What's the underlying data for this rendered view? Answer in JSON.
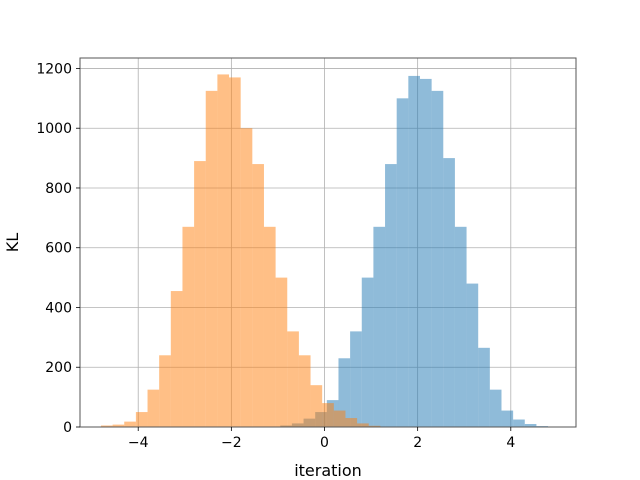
{
  "chart_data": {
    "type": "bar",
    "xlabel": "iteration",
    "ylabel": "KL",
    "xlim": [
      -5.25,
      5.4
    ],
    "ylim": [
      0,
      1235
    ],
    "grid": true,
    "x_ticks": [
      -4,
      -2,
      0,
      2,
      4
    ],
    "x_tick_labels": [
      "−4",
      "−2",
      "0",
      "2",
      "4"
    ],
    "y_ticks": [
      0,
      200,
      400,
      600,
      800,
      1000,
      1200
    ],
    "y_tick_labels": [
      "0",
      "200",
      "400",
      "600",
      "800",
      "1000",
      "1200"
    ],
    "series": [
      {
        "color": "#1f77b4",
        "opacity": 0.5,
        "bin_edges": [
          -0.95,
          -0.7,
          -0.45,
          -0.2,
          0.05,
          0.3,
          0.55,
          0.8,
          1.05,
          1.3,
          1.55,
          1.8,
          2.05,
          2.3,
          2.55,
          2.8,
          3.05,
          3.3,
          3.55,
          3.8,
          4.05,
          4.3,
          4.55,
          4.8,
          5.05
        ],
        "values": [
          5,
          12,
          28,
          50,
          90,
          230,
          320,
          500,
          670,
          880,
          1100,
          1175,
          1165,
          1125,
          900,
          670,
          480,
          265,
          125,
          55,
          25,
          10,
          3,
          1
        ]
      },
      {
        "color": "#ff7f0e",
        "opacity": 0.5,
        "bin_edges": [
          -4.8,
          -4.55,
          -4.3,
          -4.05,
          -3.8,
          -3.55,
          -3.3,
          -3.05,
          -2.8,
          -2.55,
          -2.3,
          -2.05,
          -1.8,
          -1.55,
          -1.3,
          -1.05,
          -0.8,
          -0.55,
          -0.3,
          -0.05,
          0.2,
          0.45,
          0.7,
          0.95,
          1.2
        ],
        "values": [
          5,
          8,
          18,
          50,
          125,
          240,
          455,
          670,
          890,
          1125,
          1180,
          1170,
          1000,
          880,
          670,
          500,
          320,
          240,
          140,
          80,
          55,
          30,
          12,
          4
        ]
      }
    ]
  }
}
